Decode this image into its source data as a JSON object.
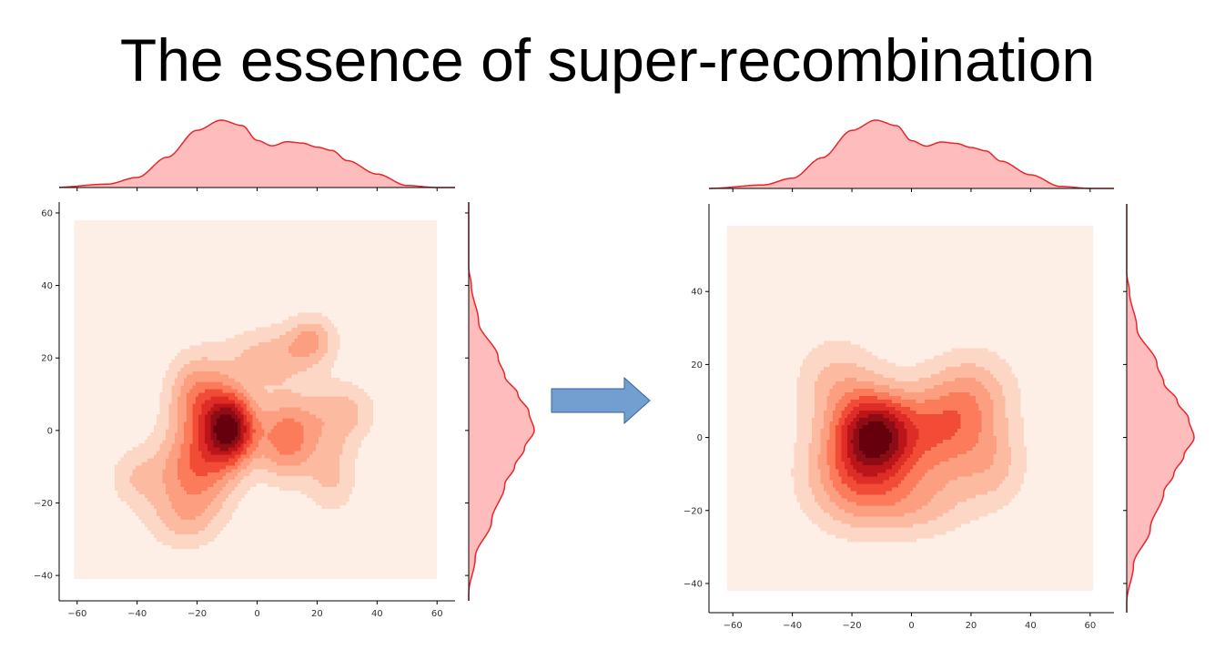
{
  "slide": {
    "title": "The essence of super-recombination"
  },
  "colors": {
    "kde_levels": [
      "#fdeee6",
      "#fcd7c6",
      "#fcbba1",
      "#fc9f81",
      "#fb7b5b",
      "#f24c37",
      "#de2d26",
      "#bb151a",
      "#8c0d15",
      "#67000d"
    ],
    "marginal_fill": "#ffbcbc",
    "marginal_line": "#e8262b",
    "arrow_fill": "#729fcf",
    "arrow_stroke": "#3465a4"
  },
  "arrow": {
    "icon": "right-arrow-icon"
  },
  "chart_data": [
    {
      "type": "jointplot-kde",
      "title": "",
      "xlabel": "",
      "ylabel": "",
      "xlim": [
        -66,
        66
      ],
      "ylim": [
        -47,
        63
      ],
      "xticks": [
        "−60",
        "−40",
        "−20",
        "0",
        "20",
        "40",
        "60"
      ],
      "xtick_values": [
        -60,
        -40,
        -20,
        0,
        20,
        40,
        60
      ],
      "yticks": [
        "−40",
        "−20",
        "0",
        "20",
        "40",
        "60"
      ],
      "ytick_values": [
        -40,
        -20,
        0,
        20,
        40,
        60
      ],
      "background_extent": {
        "x": [
          -61,
          60
        ],
        "y": [
          -41,
          58
        ]
      },
      "levels": 10,
      "components": [
        {
          "x": -9,
          "y": 1,
          "sx": 6,
          "sy": 7,
          "w": 1.0
        },
        {
          "x": -20,
          "y": -10,
          "sx": 9,
          "sy": 9,
          "w": 0.55
        },
        {
          "x": 10,
          "y": -2,
          "sx": 7,
          "sy": 8,
          "w": 0.55
        },
        {
          "x": -20,
          "y": 10,
          "sx": 7,
          "sy": 8,
          "w": 0.45
        },
        {
          "x": 18,
          "y": 25,
          "sx": 6,
          "sy": 5,
          "w": 0.35
        },
        {
          "x": 3,
          "y": 20,
          "sx": 10,
          "sy": 6,
          "w": 0.3
        },
        {
          "x": 28,
          "y": 5,
          "sx": 8,
          "sy": 6,
          "w": 0.3
        },
        {
          "x": -40,
          "y": -13,
          "sx": 7,
          "sy": 6,
          "w": 0.22
        },
        {
          "x": -25,
          "y": -25,
          "sx": 9,
          "sy": 6,
          "w": 0.22
        },
        {
          "x": 25,
          "y": -12,
          "sx": 6,
          "sy": 8,
          "w": 0.25
        }
      ],
      "marginal_x": {
        "x": [
          -68,
          -50,
          -40,
          -30,
          -20,
          -12,
          -5,
          0,
          5,
          10,
          15,
          20,
          25,
          30,
          40,
          50,
          60
        ],
        "density": [
          0.0,
          0.05,
          0.15,
          0.45,
          0.85,
          1.0,
          0.92,
          0.7,
          0.62,
          0.68,
          0.66,
          0.6,
          0.55,
          0.4,
          0.2,
          0.03,
          0.0
        ]
      },
      "marginal_y": {
        "y": [
          -45,
          -35,
          -25,
          -15,
          -10,
          -5,
          0,
          5,
          10,
          15,
          20,
          30,
          40,
          45
        ],
        "density": [
          0.0,
          0.1,
          0.35,
          0.55,
          0.7,
          0.85,
          1.0,
          0.92,
          0.75,
          0.55,
          0.45,
          0.15,
          0.04,
          0.0
        ]
      }
    },
    {
      "type": "jointplot-kde",
      "title": "",
      "xlabel": "",
      "ylabel": "",
      "xlim": [
        -68,
        68
      ],
      "ylim": [
        -48,
        64
      ],
      "xticks": [
        "−60",
        "−40",
        "−20",
        "0",
        "20",
        "40",
        "60"
      ],
      "xtick_values": [
        -60,
        -40,
        -20,
        0,
        20,
        40,
        60
      ],
      "yticks": [
        "−40",
        "−20",
        "0",
        "20",
        "40"
      ],
      "ytick_values": [
        -40,
        -20,
        0,
        20,
        40
      ],
      "background_extent": {
        "x": [
          -62,
          61
        ],
        "y": [
          -42,
          58
        ]
      },
      "levels": 10,
      "components": [
        {
          "x": -12,
          "y": 1,
          "sx": 9,
          "sy": 8,
          "w": 1.0
        },
        {
          "x": 10,
          "y": 2,
          "sx": 11,
          "sy": 10,
          "w": 0.55
        },
        {
          "x": -20,
          "y": -10,
          "sx": 12,
          "sy": 10,
          "w": 0.5
        },
        {
          "x": 22,
          "y": 12,
          "sx": 10,
          "sy": 9,
          "w": 0.3
        },
        {
          "x": -25,
          "y": 15,
          "sx": 10,
          "sy": 9,
          "w": 0.3
        },
        {
          "x": 0,
          "y": -18,
          "sx": 14,
          "sy": 7,
          "w": 0.3
        },
        {
          "x": 28,
          "y": -8,
          "sx": 8,
          "sy": 8,
          "w": 0.25
        }
      ],
      "marginal_x": {
        "x": [
          -68,
          -50,
          -40,
          -30,
          -20,
          -12,
          -5,
          0,
          5,
          10,
          15,
          20,
          25,
          30,
          40,
          50,
          60
        ],
        "density": [
          0.0,
          0.05,
          0.15,
          0.45,
          0.85,
          1.0,
          0.92,
          0.7,
          0.62,
          0.68,
          0.66,
          0.6,
          0.55,
          0.4,
          0.2,
          0.03,
          0.0
        ]
      },
      "marginal_y": {
        "y": [
          -45,
          -35,
          -25,
          -15,
          -10,
          -5,
          0,
          5,
          10,
          15,
          20,
          30,
          40,
          45
        ],
        "density": [
          0.0,
          0.1,
          0.35,
          0.55,
          0.7,
          0.85,
          1.0,
          0.92,
          0.75,
          0.55,
          0.45,
          0.15,
          0.04,
          0.0
        ]
      }
    }
  ]
}
